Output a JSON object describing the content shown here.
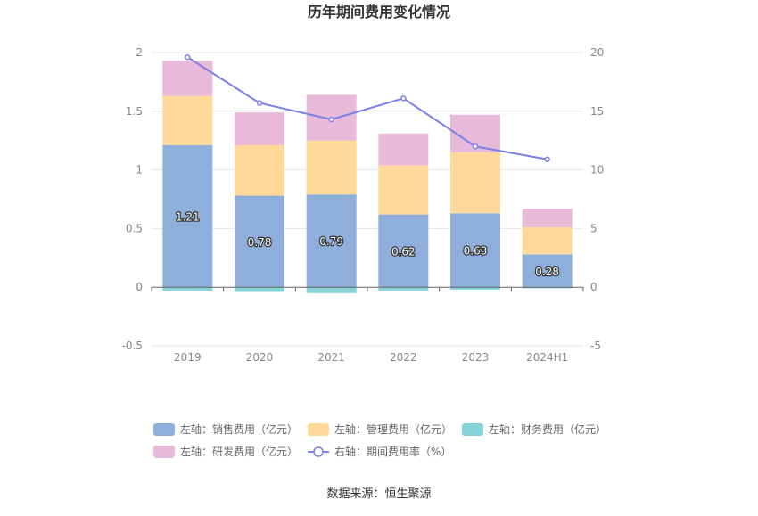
{
  "chart_data": {
    "type": "bar",
    "title": "历年期间费用变化情况",
    "categories": [
      "2019",
      "2020",
      "2021",
      "2022",
      "2023",
      "2024H1"
    ],
    "stacked": true,
    "series": [
      {
        "name": "左轴：销售费用（亿元）",
        "axis": "left",
        "type": "bar",
        "color": "#8eaedc",
        "values": [
          1.21,
          0.78,
          0.79,
          0.62,
          0.63,
          0.28
        ],
        "labels": [
          "1.21",
          "0.78",
          "0.79",
          "0.62",
          "0.63",
          "0.28"
        ]
      },
      {
        "name": "左轴：管理费用（亿元）",
        "axis": "left",
        "type": "bar",
        "color": "#fed99a",
        "values": [
          0.42,
          0.43,
          0.46,
          0.42,
          0.52,
          0.23
        ]
      },
      {
        "name": "左轴：财务费用（亿元）",
        "axis": "left",
        "type": "bar",
        "color": "#86d3d8",
        "values": [
          -0.03,
          -0.04,
          -0.05,
          -0.03,
          -0.02,
          -0.01
        ]
      },
      {
        "name": "左轴：研发费用（亿元）",
        "axis": "left",
        "type": "bar",
        "color": "#e8b9d9",
        "values": [
          0.3,
          0.28,
          0.39,
          0.27,
          0.32,
          0.16
        ]
      },
      {
        "name": "右轴：期间费用率（%）",
        "axis": "right",
        "type": "line",
        "color": "#7b7fe8",
        "values": [
          19.6,
          15.7,
          14.3,
          16.1,
          12.0,
          10.9
        ]
      }
    ],
    "y_left": {
      "ylim": [
        -0.5,
        2
      ],
      "ticks": [
        "-0.5",
        "0",
        "0.5",
        "1",
        "1.5",
        "2"
      ]
    },
    "y_right": {
      "ylim": [
        -5,
        20
      ],
      "ticks": [
        "-5",
        "0",
        "5",
        "10",
        "15",
        "20"
      ]
    },
    "grid": true,
    "legend": "bottom",
    "source": "数据来源：恒生聚源"
  }
}
